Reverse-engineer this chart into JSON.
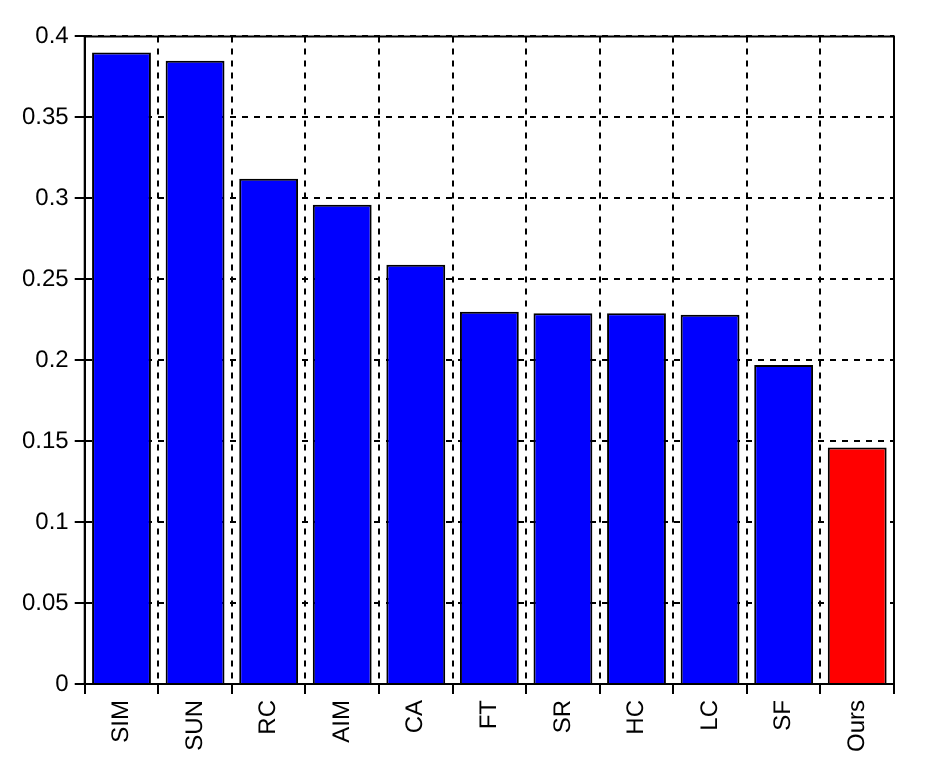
{
  "chart_data": {
    "type": "bar",
    "categories": [
      "SIM",
      "SUN",
      "RC",
      "AIM",
      "CA",
      "FT",
      "SR",
      "HC",
      "LC",
      "SF",
      "Ours"
    ],
    "values": [
      0.39,
      0.385,
      0.312,
      0.296,
      0.259,
      0.23,
      0.229,
      0.229,
      0.228,
      0.197,
      0.146
    ],
    "colors": [
      "#0000ff",
      "#0000ff",
      "#0000ff",
      "#0000ff",
      "#0000ff",
      "#0000ff",
      "#0000ff",
      "#0000ff",
      "#0000ff",
      "#0000ff",
      "#ff0000"
    ],
    "ylim": [
      0,
      0.4
    ],
    "yticks": [
      0,
      0.05,
      0.1,
      0.15,
      0.2,
      0.25,
      0.3,
      0.35,
      0.4
    ],
    "grid": true,
    "legend": false
  }
}
